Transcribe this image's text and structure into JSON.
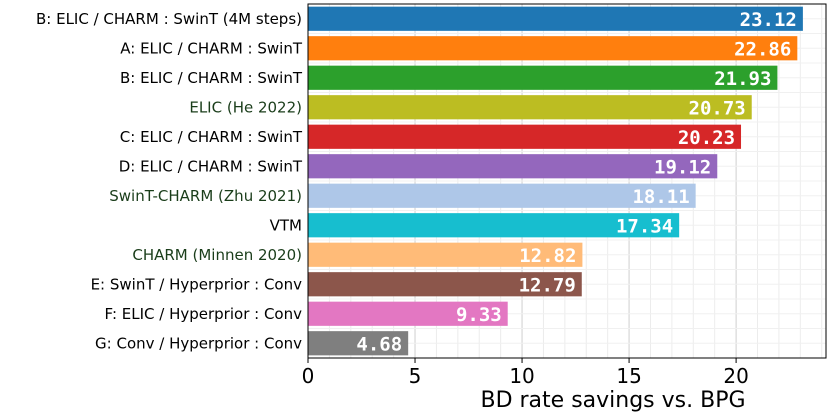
{
  "chart_data": {
    "type": "bar",
    "orientation": "horizontal",
    "title": "",
    "xlabel": "BD rate savings vs. BPG",
    "ylabel": "",
    "xlim": [
      0,
      24.2
    ],
    "xticks": [
      0,
      5,
      10,
      15,
      20
    ],
    "grid": true,
    "categories": [
      "B: ELIC / CHARM : SwinT (4M steps)",
      "A: ELIC / CHARM : SwinT",
      "B: ELIC / CHARM : SwinT",
      "ELIC (He 2022)",
      "C: ELIC / CHARM : SwinT",
      "D: ELIC / CHARM : SwinT",
      "SwinT-CHARM (Zhu 2021)",
      "VTM",
      "CHARM (Minnen 2020)",
      "E: SwinT / Hyperprior : Conv",
      "F: ELIC / Hyperprior : Conv",
      "G: Conv / Hyperprior : Conv"
    ],
    "values": [
      23.12,
      22.86,
      21.93,
      20.73,
      20.23,
      19.12,
      18.11,
      17.34,
      12.82,
      12.79,
      9.33,
      4.68
    ],
    "value_labels": [
      "23.12",
      "22.86",
      "21.93",
      "20.73",
      "20.23",
      "19.12",
      "18.11",
      "17.34",
      "12.82",
      "12.79",
      "9.33",
      "4.68"
    ],
    "colors": [
      "#1f77b4",
      "#ff7f0e",
      "#2ca02c",
      "#bcbd22",
      "#d62728",
      "#9467bd",
      "#aec7e8",
      "#17becf",
      "#ffbb78",
      "#8c564b",
      "#e377c2",
      "#7f7f7f"
    ],
    "label_colors": [
      "#000000",
      "#000000",
      "#000000",
      "#1a3d1a",
      "#000000",
      "#000000",
      "#1a3d1a",
      "#000000",
      "#1a3d1a",
      "#000000",
      "#000000",
      "#000000"
    ]
  }
}
